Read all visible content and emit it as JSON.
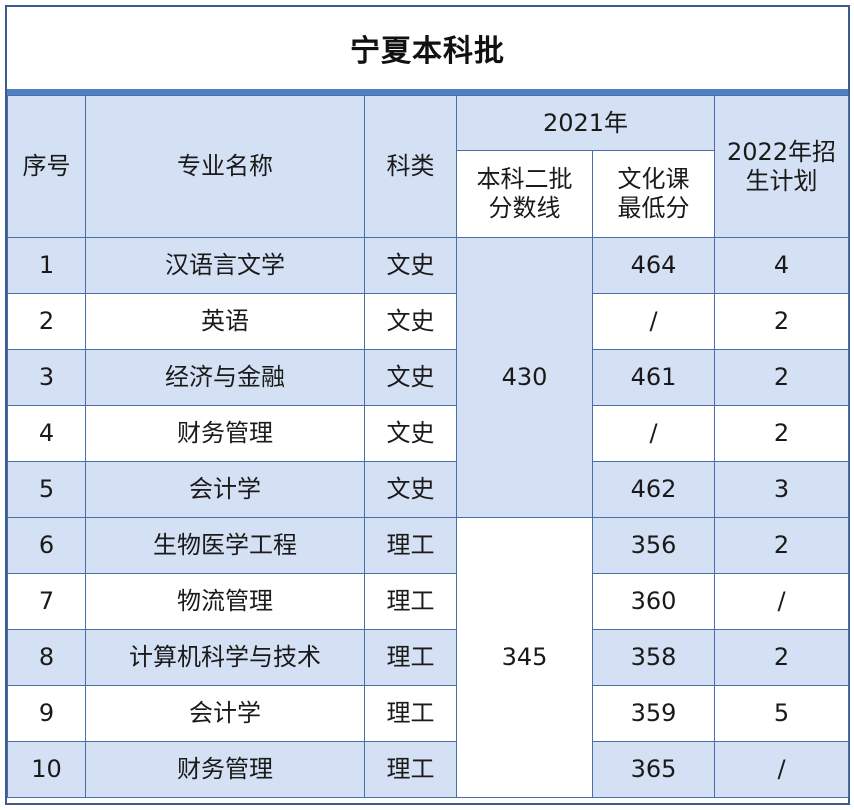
{
  "title": "宁夏本科批",
  "headers": {
    "seq": "序号",
    "major": "专业名称",
    "category": "科类",
    "year2021": "2021年",
    "cutoff": "本科二批分数线",
    "cutoff_line1": "本科二批",
    "cutoff_line2": "分数线",
    "min_score_line1": "文化课",
    "min_score_line2": "最低分",
    "plan_line1": "2022年招",
    "plan_line2": "生计划"
  },
  "cutoff_groups": [
    {
      "category": "文史",
      "cutoff": "430"
    },
    {
      "category": "理工",
      "cutoff": "345"
    }
  ],
  "rows": [
    {
      "seq": "1",
      "major": "汉语言文学",
      "category": "文史",
      "min_score": "464",
      "plan": "4"
    },
    {
      "seq": "2",
      "major": "英语",
      "category": "文史",
      "min_score": "/",
      "plan": "2"
    },
    {
      "seq": "3",
      "major": "经济与金融",
      "category": "文史",
      "min_score": "461",
      "plan": "2"
    },
    {
      "seq": "4",
      "major": "财务管理",
      "category": "文史",
      "min_score": "/",
      "plan": "2"
    },
    {
      "seq": "5",
      "major": "会计学",
      "category": "文史",
      "min_score": "462",
      "plan": "3"
    },
    {
      "seq": "6",
      "major": "生物医学工程",
      "category": "理工",
      "min_score": "356",
      "plan": "2"
    },
    {
      "seq": "7",
      "major": "物流管理",
      "category": "理工",
      "min_score": "360",
      "plan": "/"
    },
    {
      "seq": "8",
      "major": "计算机科学与技术",
      "category": "理工",
      "min_score": "358",
      "plan": "2"
    },
    {
      "seq": "9",
      "major": "会计学",
      "category": "理工",
      "min_score": "359",
      "plan": "5"
    },
    {
      "seq": "10",
      "major": "财务管理",
      "category": "理工",
      "min_score": "365",
      "plan": "/"
    }
  ]
}
